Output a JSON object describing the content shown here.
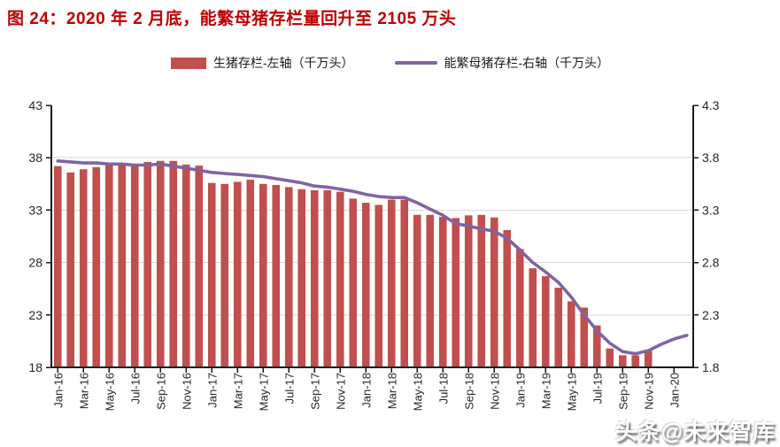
{
  "figure": {
    "title": "图 24：2020 年 2 月底，能繁母猪存栏量回升至 2105 万头",
    "title_color": "#C00000",
    "background_color": "#FFFFFF"
  },
  "legend": [
    {
      "label": "生猪存栏-左轴（千万头）",
      "swatch": "bar",
      "color": "#C0504D"
    },
    {
      "label": "能繁母猪存栏-右轴（千万头）",
      "swatch": "line",
      "color": "#8064A2"
    }
  ],
  "watermark": {
    "text": "头条@未来智库"
  },
  "chart_data": {
    "type": "combo-bar-line",
    "categories": [
      "Jan-16",
      "Feb-16",
      "Mar-16",
      "Apr-16",
      "May-16",
      "Jun-16",
      "Jul-16",
      "Aug-16",
      "Sep-16",
      "Oct-16",
      "Nov-16",
      "Dec-16",
      "Jan-17",
      "Feb-17",
      "Mar-17",
      "Apr-17",
      "May-17",
      "Jun-17",
      "Jul-17",
      "Aug-17",
      "Sep-17",
      "Oct-17",
      "Nov-17",
      "Dec-17",
      "Jan-18",
      "Feb-18",
      "Mar-18",
      "Apr-18",
      "May-18",
      "Jun-18",
      "Jul-18",
      "Aug-18",
      "Sep-18",
      "Oct-18",
      "Nov-18",
      "Dec-18",
      "Jan-19",
      "Feb-19",
      "Mar-19",
      "Apr-19",
      "May-19",
      "Jun-19",
      "Jul-19",
      "Aug-19",
      "Sep-19",
      "Oct-19",
      "Nov-19",
      "Dec-19",
      "Jan-20",
      "Feb-20"
    ],
    "x_axis": {
      "tick_every": 2,
      "tick_labels": [
        "Jan-16",
        "Mar-16",
        "May-16",
        "Jul-16",
        "Sep-16",
        "Nov-16",
        "Jan-17",
        "Mar-17",
        "May-17",
        "Jul-17",
        "Sep-17",
        "Nov-17",
        "Jan-18",
        "Mar-18",
        "May-18",
        "Jul-18",
        "Sep-18",
        "Nov-18",
        "Jan-19",
        "Mar-19",
        "May-19",
        "Jul-19",
        "Sep-19",
        "Nov-19",
        "Jan-20"
      ]
    },
    "left_axis": {
      "min": 18,
      "max": 43,
      "tick_labels": [
        "18",
        "23",
        "28",
        "33",
        "38",
        "43"
      ]
    },
    "right_axis": {
      "min": 1.8,
      "max": 4.3,
      "tick_labels": [
        "1.8",
        "2.3",
        "2.8",
        "3.3",
        "3.8",
        "4.3"
      ]
    },
    "grid": {
      "show_horizontal": true,
      "color": "#D9D9D9"
    },
    "series": [
      {
        "name": "生猪存栏-左轴（千万头）",
        "type": "bar",
        "axis": "left",
        "color": "#C0504D",
        "values": [
          37.2,
          36.6,
          36.9,
          37.1,
          37.3,
          37.4,
          37.4,
          37.6,
          37.7,
          37.7,
          37.35,
          37.25,
          35.6,
          35.5,
          35.7,
          35.9,
          35.5,
          35.4,
          35.2,
          35.0,
          34.9,
          34.9,
          34.75,
          34.1,
          33.7,
          33.5,
          34.0,
          34.0,
          32.55,
          32.55,
          32.35,
          32.25,
          32.5,
          32.55,
          32.3,
          31.1,
          29.3,
          27.45,
          26.7,
          25.6,
          24.3,
          23.7,
          22.0,
          19.8,
          19.15,
          19.15,
          19.6,
          null,
          null,
          null
        ]
      },
      {
        "name": "能繁母猪存栏-右轴（千万头）",
        "type": "line",
        "axis": "right",
        "color": "#8064A2",
        "values": [
          3.77,
          3.76,
          3.75,
          3.75,
          3.74,
          3.74,
          3.73,
          3.73,
          3.74,
          3.72,
          3.7,
          3.68,
          3.66,
          3.65,
          3.64,
          3.63,
          3.62,
          3.6,
          3.58,
          3.56,
          3.53,
          3.52,
          3.5,
          3.48,
          3.45,
          3.43,
          3.42,
          3.42,
          3.37,
          3.31,
          3.25,
          3.17,
          3.15,
          3.12,
          3.1,
          3.03,
          2.92,
          2.8,
          2.71,
          2.61,
          2.47,
          2.3,
          2.15,
          2.03,
          1.95,
          1.93,
          1.96,
          2.02,
          2.07,
          2.105
        ]
      }
    ]
  }
}
